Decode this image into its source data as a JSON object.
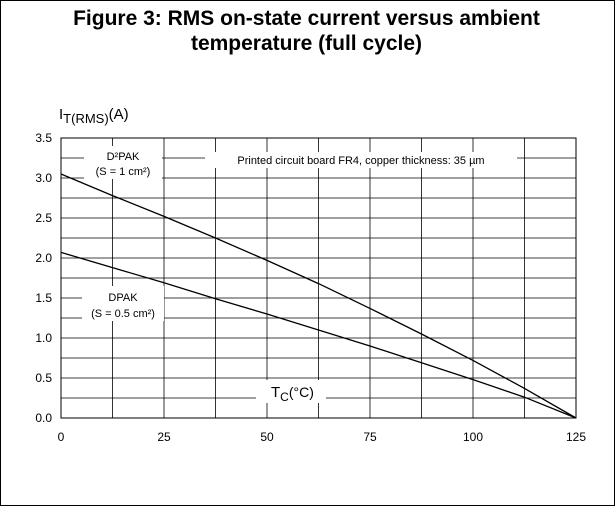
{
  "title_line1": "Figure 3: RMS on-state current versus ambient",
  "title_line2": "temperature (full cycle)",
  "chart_data": {
    "type": "line",
    "title": "Figure 3: RMS on-state current versus ambient temperature (full cycle)",
    "ylabel_main": "I",
    "ylabel_sub": "T(RMS)",
    "ylabel_unit": "(A)",
    "xlabel_main": "T",
    "xlabel_sub": "C",
    "xlabel_unit": "(°C)",
    "xlim": [
      0,
      125
    ],
    "ylim": [
      0,
      3.5
    ],
    "x_ticks": [
      "0",
      "25",
      "50",
      "75",
      "100",
      "125"
    ],
    "y_ticks": [
      "0.0",
      "0.5",
      "1.0",
      "1.5",
      "2.0",
      "2.5",
      "3.0",
      "3.5"
    ],
    "x_tick_values": [
      0,
      25,
      50,
      75,
      100,
      125
    ],
    "y_tick_values": [
      0,
      0.5,
      1.0,
      1.5,
      2.0,
      2.5,
      3.0,
      3.5
    ],
    "grid": true,
    "annotation": "Printed circuit board FR4, copper thickness: 35 µm",
    "series": [
      {
        "name": "D²PAK",
        "label_line1": "D²PAK",
        "label_line2": "(S = 1 cm²)",
        "x": [
          0,
          12.5,
          25,
          37.5,
          50,
          62.5,
          75,
          87.5,
          100,
          112.5,
          125
        ],
        "y": [
          3.05,
          2.78,
          2.52,
          2.25,
          1.97,
          1.68,
          1.37,
          1.05,
          0.72,
          0.37,
          0.0
        ]
      },
      {
        "name": "DPAK",
        "label_line1": "DPAK",
        "label_line2": "(S = 0.5 cm²)",
        "x": [
          0,
          12.5,
          25,
          37.5,
          50,
          62.5,
          75,
          87.5,
          100,
          112.5,
          125
        ],
        "y": [
          2.07,
          1.88,
          1.69,
          1.49,
          1.3,
          1.1,
          0.9,
          0.69,
          0.48,
          0.26,
          0.0
        ]
      }
    ]
  }
}
